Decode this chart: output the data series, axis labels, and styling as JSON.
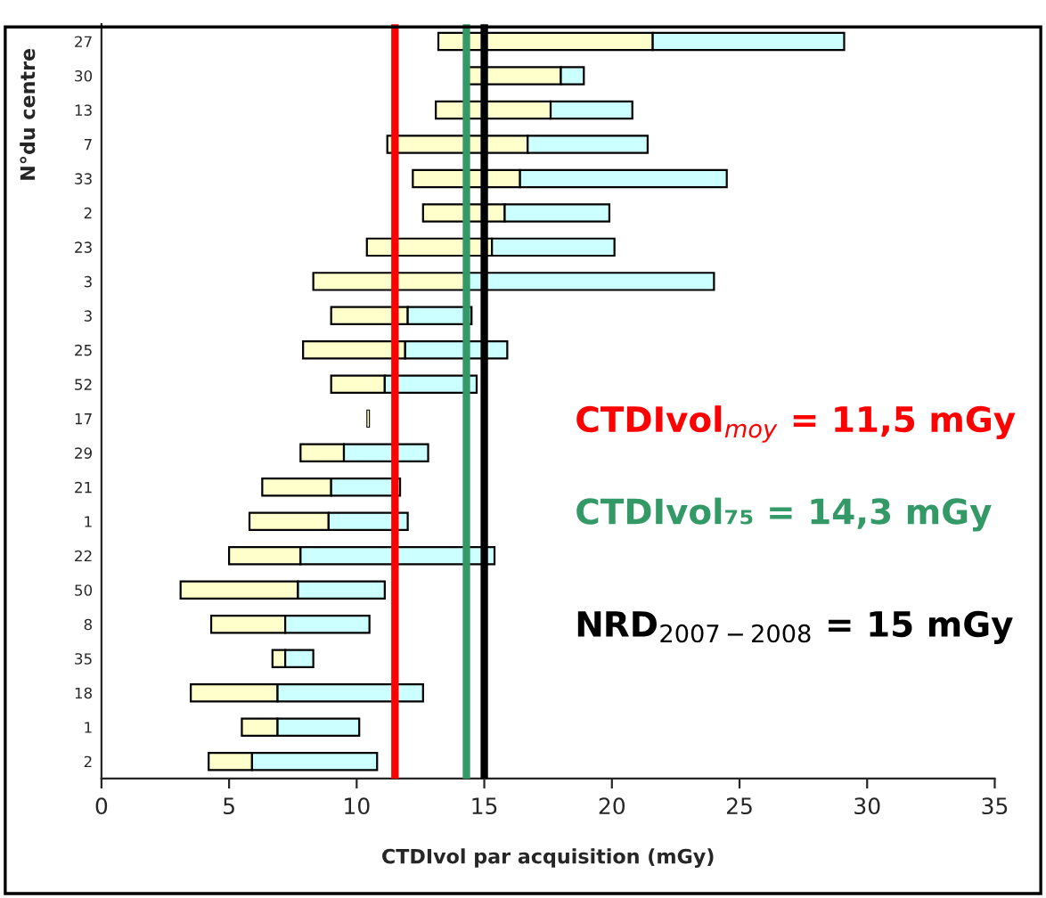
{
  "chart_data": {
    "type": "bar",
    "orientation": "horizontal",
    "xlabel": "CTDIvol par acquisition (mGy)",
    "ylabel": "N°du centre",
    "categories": [
      "27",
      "30",
      "13",
      "7",
      "33",
      "2",
      "23",
      "3",
      "3",
      "25",
      "52",
      "17",
      "29",
      "21",
      "1",
      "22",
      "50",
      "8",
      "35",
      "18",
      "1",
      "2"
    ],
    "series": [
      {
        "color": "#ffffcc",
        "base": [
          13.2,
          14.3,
          13.1,
          11.2,
          12.2,
          12.6,
          10.4,
          8.3,
          9.0,
          7.9,
          9.0,
          10.4,
          7.8,
          6.3,
          5.8,
          5.0,
          3.1,
          4.3,
          6.7,
          3.5,
          5.5,
          4.2
        ],
        "values": [
          8.4,
          3.7,
          4.5,
          5.5,
          4.2,
          3.2,
          4.9,
          6.0,
          3.0,
          4.0,
          2.1,
          0.1,
          1.7,
          2.7,
          3.1,
          2.8,
          4.6,
          2.9,
          0.5,
          3.4,
          1.4,
          1.7
        ]
      },
      {
        "color": "#ccffff",
        "base": [
          21.6,
          18.0,
          17.6,
          16.7,
          16.4,
          15.8,
          15.3,
          14.3,
          12.0,
          11.9,
          11.1,
          null,
          9.5,
          9.0,
          8.9,
          7.8,
          7.7,
          7.2,
          7.2,
          6.9,
          6.9,
          5.9
        ],
        "values": [
          7.5,
          0.9,
          3.2,
          4.7,
          8.1,
          4.1,
          4.8,
          9.7,
          2.5,
          4.0,
          3.6,
          null,
          3.3,
          2.7,
          3.1,
          7.6,
          3.4,
          3.3,
          1.1,
          5.7,
          3.2,
          4.9
        ]
      }
    ],
    "xlim": [
      0,
      35
    ],
    "xticks": [
      0,
      5,
      10,
      15,
      20,
      25,
      30,
      35
    ],
    "ref_lines": [
      {
        "axis": "x",
        "value": 11.5,
        "label": "CTDIvol$_{moy}$ = 11,5 mGy",
        "color": "#ff0000"
      },
      {
        "axis": "x",
        "value": 14.3,
        "label": "CTDIvol₇₅ = 14,3 mGy",
        "color": "#339966"
      },
      {
        "axis": "x",
        "value": 15,
        "label": "NRD$_{2007−2008}$ = 15 mGy",
        "color": "#000000"
      }
    ],
    "grid": false,
    "legend": false
  }
}
